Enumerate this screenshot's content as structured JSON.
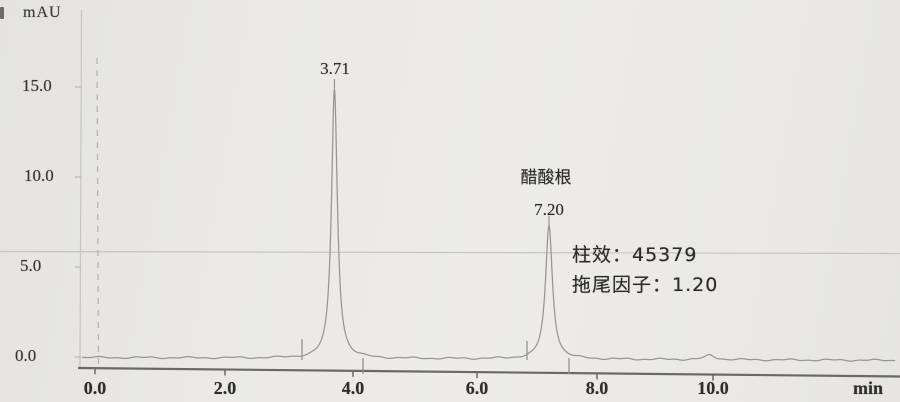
{
  "chart_data": {
    "type": "line",
    "kind": "hplc-chromatogram",
    "title": "",
    "grid": false,
    "legend": false,
    "y_axis": {
      "label": "mAU",
      "ticks": [
        15.0,
        10.0,
        5.0,
        0.0
      ],
      "tick_labels": [
        "15.0",
        "10.0",
        "5.0",
        "0.0"
      ],
      "range": [
        -0.7,
        17.6
      ]
    },
    "x_axis": {
      "label": "min",
      "ticks": [
        0.0,
        2.0,
        4.0,
        6.0,
        8.0,
        10.0
      ],
      "tick_labels": [
        "0.0",
        "2.0",
        "4.0",
        "6.0",
        "8.0",
        "10.0"
      ],
      "range": [
        0,
        12.9
      ]
    },
    "baseline_mau": 0.0,
    "peaks": [
      {
        "retention_time": 3.71,
        "label": "3.71",
        "height_mau": 15.0,
        "half_width_min": 0.055,
        "name": ""
      },
      {
        "retention_time": 7.2,
        "label": "7.20",
        "height_mau": 7.4,
        "half_width_min": 0.07,
        "name": "醋酸根"
      },
      {
        "retention_time": 9.95,
        "label": "",
        "height_mau": 0.25,
        "half_width_min": 0.1,
        "name": ""
      }
    ],
    "annotations": [
      {
        "text": "柱效：45379"
      },
      {
        "text": "拖尾因子：1.20"
      }
    ],
    "markers": {
      "injection_dashed_line_min": 0.05,
      "scan_fold_line": true
    }
  }
}
